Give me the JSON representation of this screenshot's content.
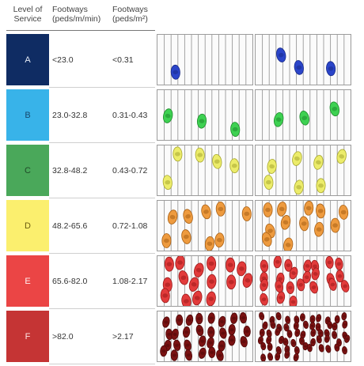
{
  "header": {
    "level_of_service": [
      "Level of",
      "Service"
    ],
    "footways_flow": [
      "Footways",
      "(peds/m/min)"
    ],
    "footways_density": [
      "Footways",
      "(peds/m²)"
    ]
  },
  "rows": [
    {
      "level": "A",
      "flow": "<23.0",
      "density": "<0.31",
      "color": "#0f2c63",
      "text_color": "#e6ecf6",
      "ped_color": "#2b45c9",
      "ped_dark": "#172a8a",
      "peds_left": 1,
      "peds_right": 3
    },
    {
      "level": "B",
      "flow": "23.0-32.8",
      "density": "0.31-0.43",
      "color": "#38b3e9",
      "text_color": "#184a6d",
      "ped_color": "#3ed152",
      "ped_dark": "#1e8a2b",
      "peds_left": 3,
      "peds_right": 3
    },
    {
      "level": "C",
      "flow": "32.8-48.2",
      "density": "0.43-0.72",
      "color": "#4aa85a",
      "text_color": "#1f4a28",
      "ped_color": "#ecec6a",
      "ped_dark": "#a8a830",
      "peds_left": 5,
      "peds_right": 7
    },
    {
      "level": "D",
      "flow": "48.2-65.6",
      "density": "0.72-1.08",
      "color": "#fbef6e",
      "text_color": "#6b5d10",
      "ped_color": "#ee9b3f",
      "ped_dark": "#a85f14",
      "peds_left": 9,
      "peds_right": 12
    },
    {
      "level": "E",
      "flow": "65.6-82.0",
      "density": "1.08-2.17",
      "color": "#eb4545",
      "text_color": "#fff0f0",
      "ped_color": "#e23b3b",
      "ped_dark": "#9c1a1a",
      "peds_left": 16,
      "peds_right": 24
    },
    {
      "level": "F",
      "flow": ">82.0",
      "density": ">2.17",
      "color": "#c53434",
      "text_color": "#ffe6e6",
      "ped_color": "#7a1212",
      "ped_dark": "#4d0808",
      "peds_left": 30,
      "peds_right": 60
    }
  ]
}
